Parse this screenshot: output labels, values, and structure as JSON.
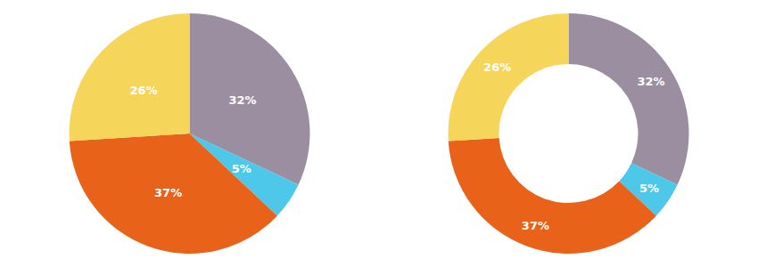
{
  "chart_data": [
    {
      "type": "pie",
      "values": [
        32,
        5,
        37,
        26
      ],
      "value_labels": [
        "32%",
        "5%",
        "37%",
        "26%"
      ],
      "colors": [
        "#9B8EA0",
        "#4DC8E8",
        "#E8621A",
        "#F5D55A"
      ],
      "data_labels": true,
      "legend": false
    },
    {
      "type": "donut",
      "values": [
        32,
        5,
        37,
        26
      ],
      "value_labels": [
        "32%",
        "5%",
        "37%",
        "26%"
      ],
      "colors": [
        "#9B8EA0",
        "#4DC8E8",
        "#E8621A",
        "#F5D55A"
      ],
      "data_labels": true,
      "legend": false
    }
  ]
}
